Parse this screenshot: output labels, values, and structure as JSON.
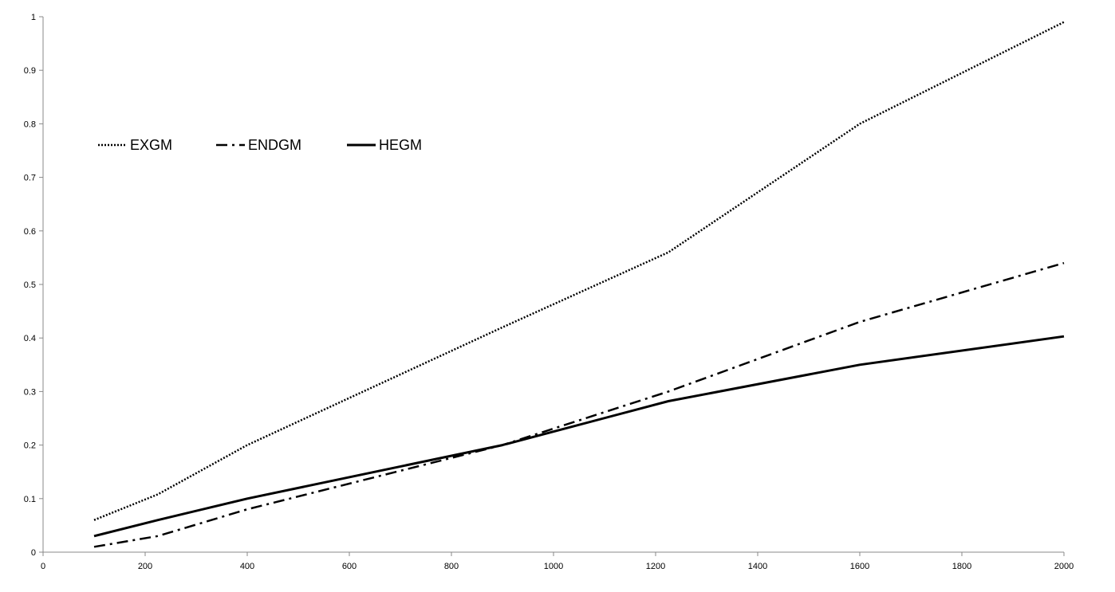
{
  "chart_data": {
    "type": "line",
    "title": "",
    "xlabel": "",
    "ylabel": "",
    "xlim": [
      0,
      2000
    ],
    "ylim": [
      0,
      1
    ],
    "x_ticks": [
      0,
      200,
      400,
      600,
      800,
      1000,
      1200,
      1400,
      1600,
      1800,
      2000
    ],
    "x_tick_labels": [
      "0",
      "200",
      "400",
      "600",
      "800",
      "1000",
      "1200",
      "1400",
      "1600",
      "1800",
      "2000"
    ],
    "y_ticks": [
      0,
      0.1,
      0.2,
      0.3,
      0.4,
      0.5,
      0.6,
      0.7,
      0.8,
      0.9,
      1
    ],
    "y_tick_labels": [
      "0",
      "0.1",
      "0.2",
      "0.3",
      "0.4",
      "0.5",
      "0.6",
      "0.7",
      "0.8",
      "0.9",
      "1"
    ],
    "grid": false,
    "legend": "top-left",
    "series": [
      {
        "name": "EXGM",
        "dash": "dotted",
        "color": "#000000",
        "x": [
          100,
          225,
          400,
          900,
          1225,
          1600,
          2000
        ],
        "y": [
          0.06,
          0.108,
          0.2,
          0.42,
          0.56,
          0.8,
          0.99
        ]
      },
      {
        "name": "ENDGM",
        "dash": "dash-dot",
        "color": "#000000",
        "x": [
          100,
          225,
          400,
          900,
          1225,
          1600,
          2000
        ],
        "y": [
          0.01,
          0.03,
          0.08,
          0.2,
          0.3,
          0.43,
          0.54
        ]
      },
      {
        "name": "HEGM",
        "dash": "solid",
        "color": "#000000",
        "x": [
          100,
          225,
          400,
          900,
          1225,
          1600,
          2000
        ],
        "y": [
          0.03,
          0.06,
          0.1,
          0.2,
          0.282,
          0.35,
          0.403
        ]
      }
    ]
  }
}
